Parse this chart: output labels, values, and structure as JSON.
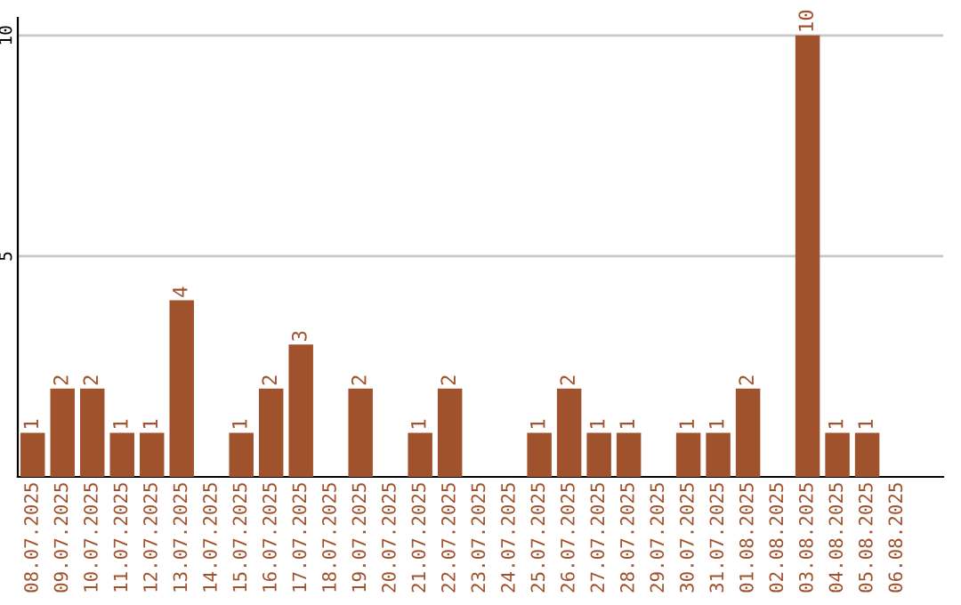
{
  "chart_data": {
    "type": "bar",
    "categories": [
      "08.07.2025",
      "09.07.2025",
      "10.07.2025",
      "11.07.2025",
      "12.07.2025",
      "13.07.2025",
      "14.07.2025",
      "15.07.2025",
      "16.07.2025",
      "17.07.2025",
      "18.07.2025",
      "19.07.2025",
      "20.07.2025",
      "21.07.2025",
      "22.07.2025",
      "23.07.2025",
      "24.07.2025",
      "25.07.2025",
      "26.07.2025",
      "27.07.2025",
      "28.07.2025",
      "29.07.2025",
      "30.07.2025",
      "31.07.2025",
      "01.08.2025",
      "02.08.2025",
      "03.08.2025",
      "04.08.2025",
      "05.08.2025",
      "06.08.2025"
    ],
    "values": [
      1,
      2,
      2,
      1,
      1,
      4,
      0,
      1,
      2,
      3,
      0,
      2,
      0,
      1,
      2,
      0,
      0,
      1,
      2,
      1,
      1,
      0,
      1,
      1,
      2,
      0,
      10,
      1,
      1,
      0
    ],
    "value_labels": [
      "1",
      "2",
      "2",
      "1",
      "1",
      "4",
      null,
      "1",
      "2",
      "3",
      null,
      "2",
      null,
      "1",
      "2",
      null,
      null,
      "1",
      "2",
      "1",
      "1",
      null,
      "1",
      "1",
      "2",
      null,
      "10",
      "1",
      "1",
      null
    ],
    "color": "#a0522d",
    "ylim": [
      0,
      10.4
    ],
    "yticks": [
      5,
      10
    ],
    "grid": "y"
  }
}
